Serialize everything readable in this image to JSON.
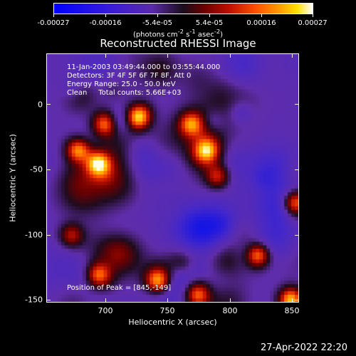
{
  "colorbar": {
    "labels": [
      "-0.00027",
      "-0.00016",
      "-5.4e-05",
      "5.4e-05",
      "0.00016",
      "0.00027"
    ],
    "units_html": "(photons cm<sup>-2</sup> s<sup>-1</sup> asec<sup>-2</sup>)",
    "colors": [
      "#0000ff",
      "#5a2aa8",
      "#1a0d1a",
      "#c01000",
      "#ff9a00",
      "#ffffff"
    ]
  },
  "title": "Reconstructed RHESSI Image",
  "info": {
    "time_range": "11-Jan-2003 03:49:44.000 to 03:55:44.000",
    "detectors": "Detectors: 3F 4F 5F 6F 7F 8F, Att 0",
    "energy": "Energy Range: 25.0 - 50.0 keV",
    "clean": "Clean     Total counts: 5.66E+03",
    "peak": "Position of Peak = [845,-149]"
  },
  "chart_data": {
    "type": "heatmap",
    "title": "Reconstructed RHESSI Image",
    "xlabel": "Heliocentric X (arcsec)",
    "ylabel": "Heliocentric Y (arcsec)",
    "x_ticks": [
      "700",
      "750",
      "800",
      "850"
    ],
    "y_ticks": [
      "0",
      "-50",
      "-100",
      "-150"
    ],
    "xlim": [
      663,
      852
    ],
    "ylim": [
      -152,
      37
    ],
    "value_range": [
      -0.00027,
      0.00027
    ],
    "peak": [
      845,
      -149
    ],
    "hotspots": [
      {
        "x": 700,
        "y": -45,
        "level": 0.9
      },
      {
        "x": 705,
        "y": -15,
        "level": 0.75
      },
      {
        "x": 685,
        "y": -35,
        "level": 0.85
      },
      {
        "x": 730,
        "y": -10,
        "level": 1.0
      },
      {
        "x": 770,
        "y": -15,
        "level": 0.7
      },
      {
        "x": 782,
        "y": -35,
        "level": 0.65
      },
      {
        "x": 790,
        "y": -55,
        "level": 0.6
      },
      {
        "x": 848,
        "y": -75,
        "level": 0.85
      },
      {
        "x": 845,
        "y": -149,
        "level": 1.0
      },
      {
        "x": 820,
        "y": -115,
        "level": 0.9
      },
      {
        "x": 745,
        "y": -135,
        "level": 0.85
      },
      {
        "x": 700,
        "y": -130,
        "level": 0.7
      },
      {
        "x": 680,
        "y": -100,
        "level": 0.55
      },
      {
        "x": 775,
        "y": -145,
        "level": 0.7
      }
    ]
  },
  "timestamp": "27-Apr-2022 22:20"
}
